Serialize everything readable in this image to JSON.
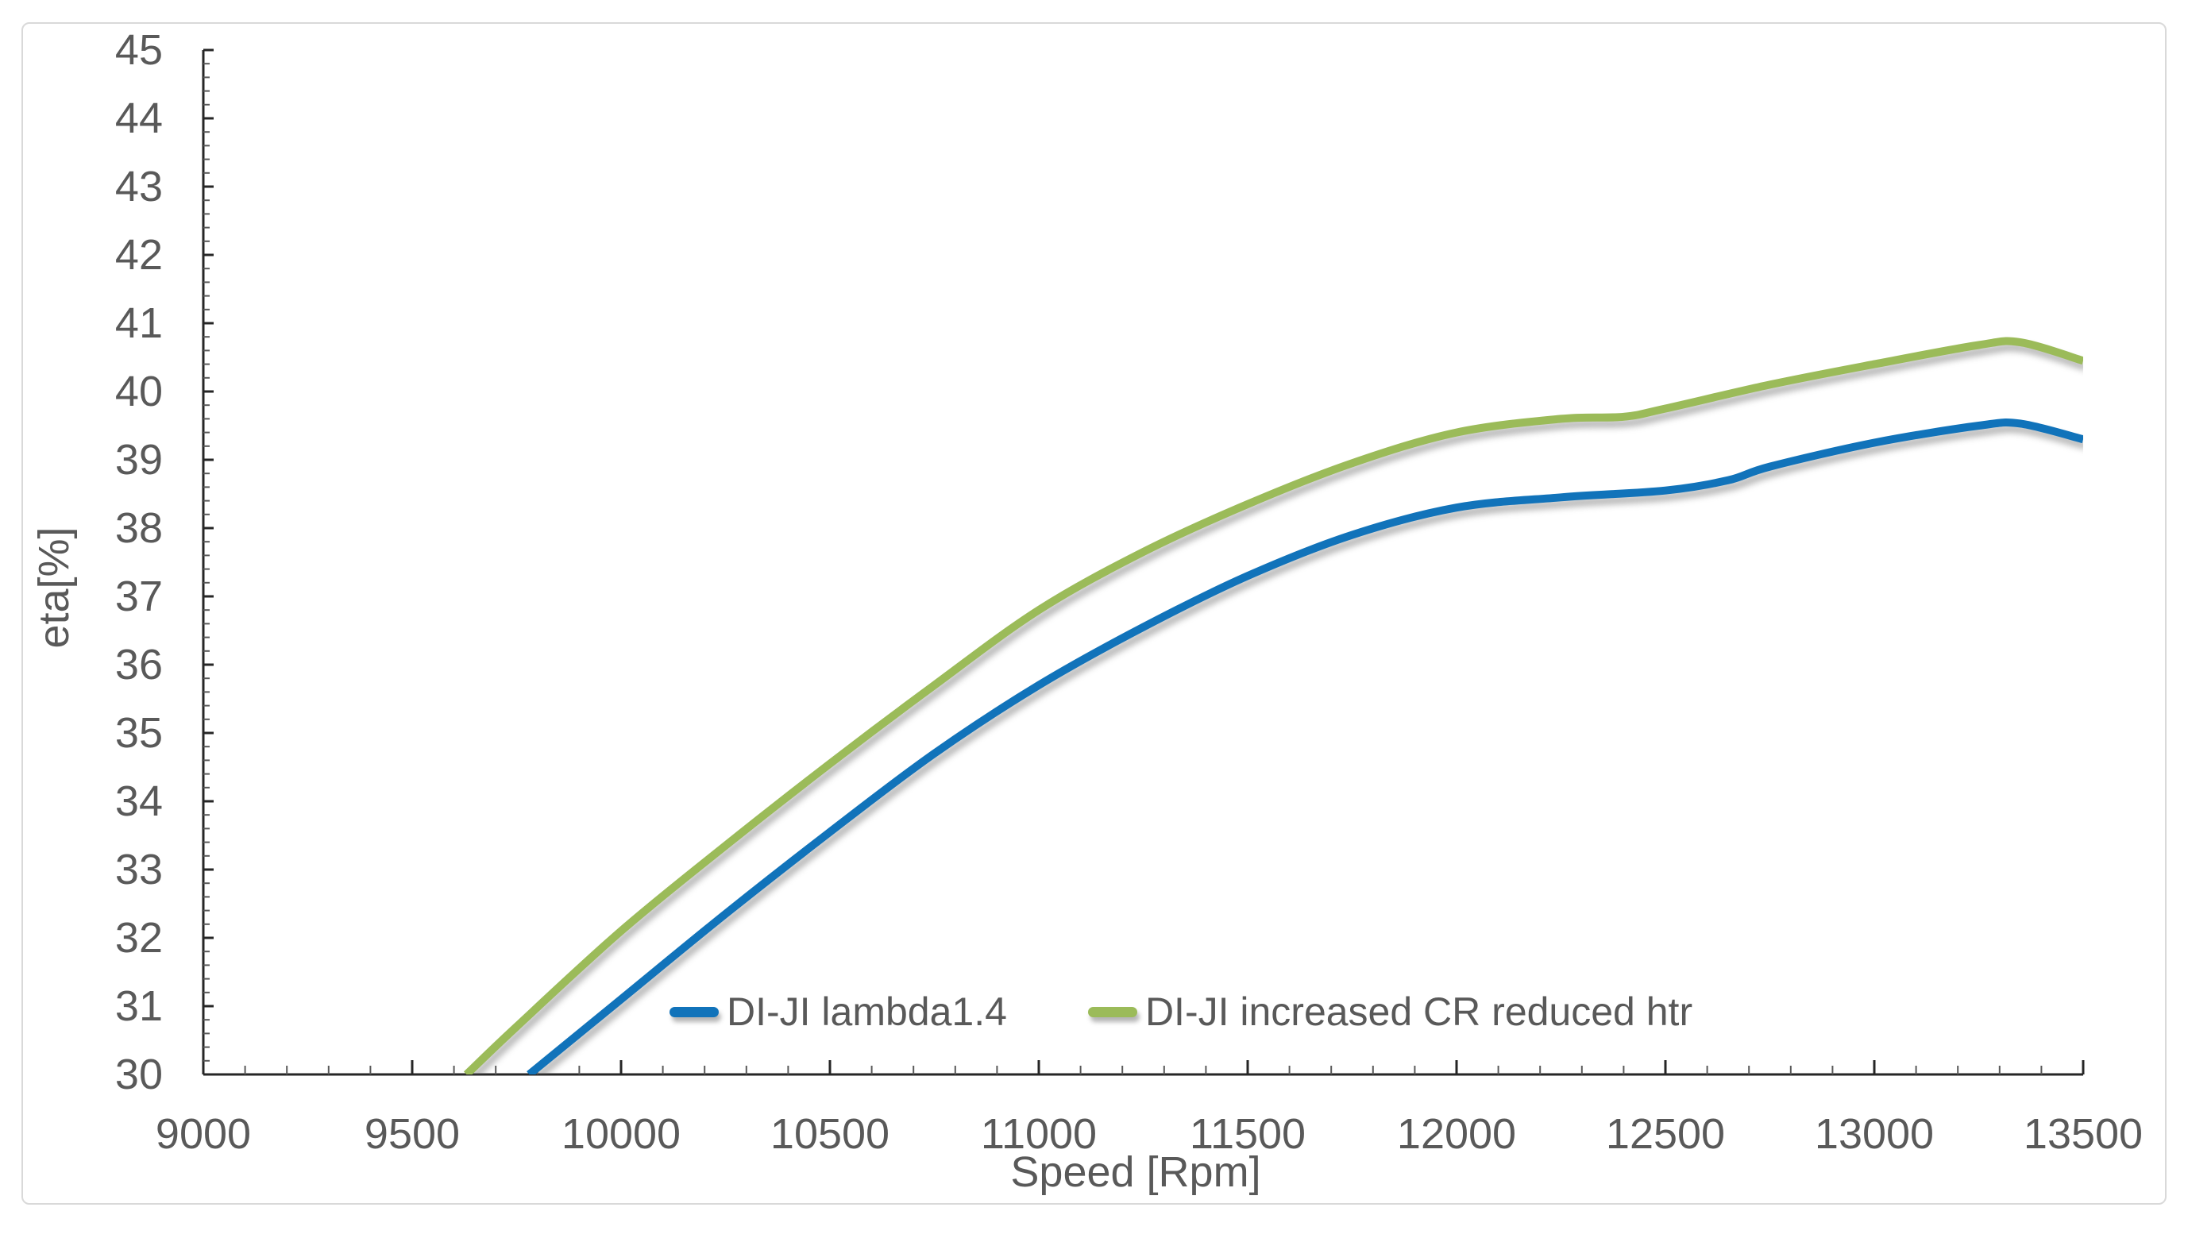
{
  "figure": {
    "frame_color": "#d9d9d9",
    "background": "#ffffff",
    "axis_color": "#262626",
    "minor_tick_color": "#595959",
    "label_color": "#595959"
  },
  "chart_data": {
    "type": "line",
    "title": "",
    "xlabel": "Speed [Rpm]",
    "ylabel": "eta[%]",
    "xlim": [
      9000,
      13500
    ],
    "ylim": [
      30,
      45
    ],
    "grid": false,
    "legend_position": "bottom-inside",
    "x_major_step": 500,
    "x_minor_step": 100,
    "y_major_step": 1,
    "y_minor_step": 0.2,
    "x_tick_labels": [
      "9000",
      "9500",
      "10000",
      "10500",
      "11000",
      "11500",
      "12000",
      "12500",
      "13000",
      "13500"
    ],
    "y_tick_labels": [
      "30",
      "31",
      "32",
      "33",
      "34",
      "35",
      "36",
      "37",
      "38",
      "39",
      "40",
      "41",
      "42",
      "43",
      "44",
      "45"
    ],
    "series": [
      {
        "name": "DI-JI lambda1.4",
        "color": "#1173BA",
        "points": [
          [
            9780,
            30.0
          ],
          [
            10000,
            31.1
          ],
          [
            10250,
            32.35
          ],
          [
            10500,
            33.55
          ],
          [
            10750,
            34.7
          ],
          [
            11000,
            35.7
          ],
          [
            11250,
            36.55
          ],
          [
            11500,
            37.3
          ],
          [
            11750,
            37.9
          ],
          [
            12000,
            38.3
          ],
          [
            12250,
            38.45
          ],
          [
            12500,
            38.55
          ],
          [
            12650,
            38.7
          ],
          [
            12750,
            38.9
          ],
          [
            13000,
            39.25
          ],
          [
            13250,
            39.5
          ],
          [
            13350,
            39.53
          ],
          [
            13500,
            39.3
          ]
        ]
      },
      {
        "name": "DI-JI increased CR reduced htr",
        "color": "#9BBB59",
        "points": [
          [
            9630,
            30.0
          ],
          [
            9750,
            30.7
          ],
          [
            10000,
            32.1
          ],
          [
            10250,
            33.35
          ],
          [
            10500,
            34.55
          ],
          [
            10750,
            35.7
          ],
          [
            11000,
            36.8
          ],
          [
            11250,
            37.65
          ],
          [
            11500,
            38.35
          ],
          [
            11750,
            38.95
          ],
          [
            12000,
            39.4
          ],
          [
            12250,
            39.6
          ],
          [
            12400,
            39.63
          ],
          [
            12500,
            39.75
          ],
          [
            12750,
            40.1
          ],
          [
            13000,
            40.4
          ],
          [
            13250,
            40.68
          ],
          [
            13350,
            40.72
          ],
          [
            13500,
            40.45
          ]
        ]
      }
    ]
  }
}
